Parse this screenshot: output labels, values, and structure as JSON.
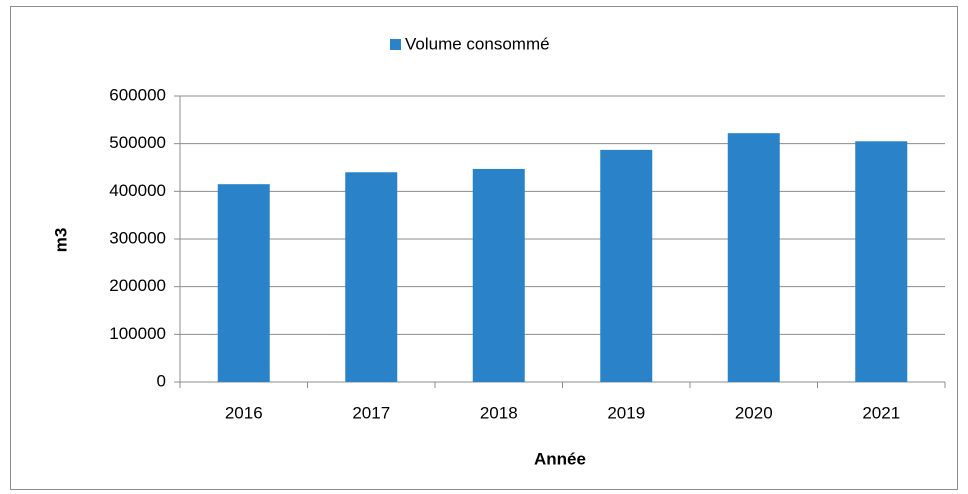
{
  "chart_data": {
    "type": "bar",
    "categories": [
      "2016",
      "2017",
      "2018",
      "2019",
      "2020",
      "2021"
    ],
    "series": [
      {
        "name": "Volume consommé",
        "color": "#2a83c9",
        "values": [
          415000,
          440000,
          447000,
          487000,
          522000,
          505000
        ]
      }
    ],
    "x_label": "Année",
    "y_label": "m3",
    "ylim": [
      0,
      600000
    ],
    "yticks": [
      0,
      100000,
      200000,
      300000,
      400000,
      500000,
      600000
    ],
    "grid": true,
    "legend": "top"
  }
}
